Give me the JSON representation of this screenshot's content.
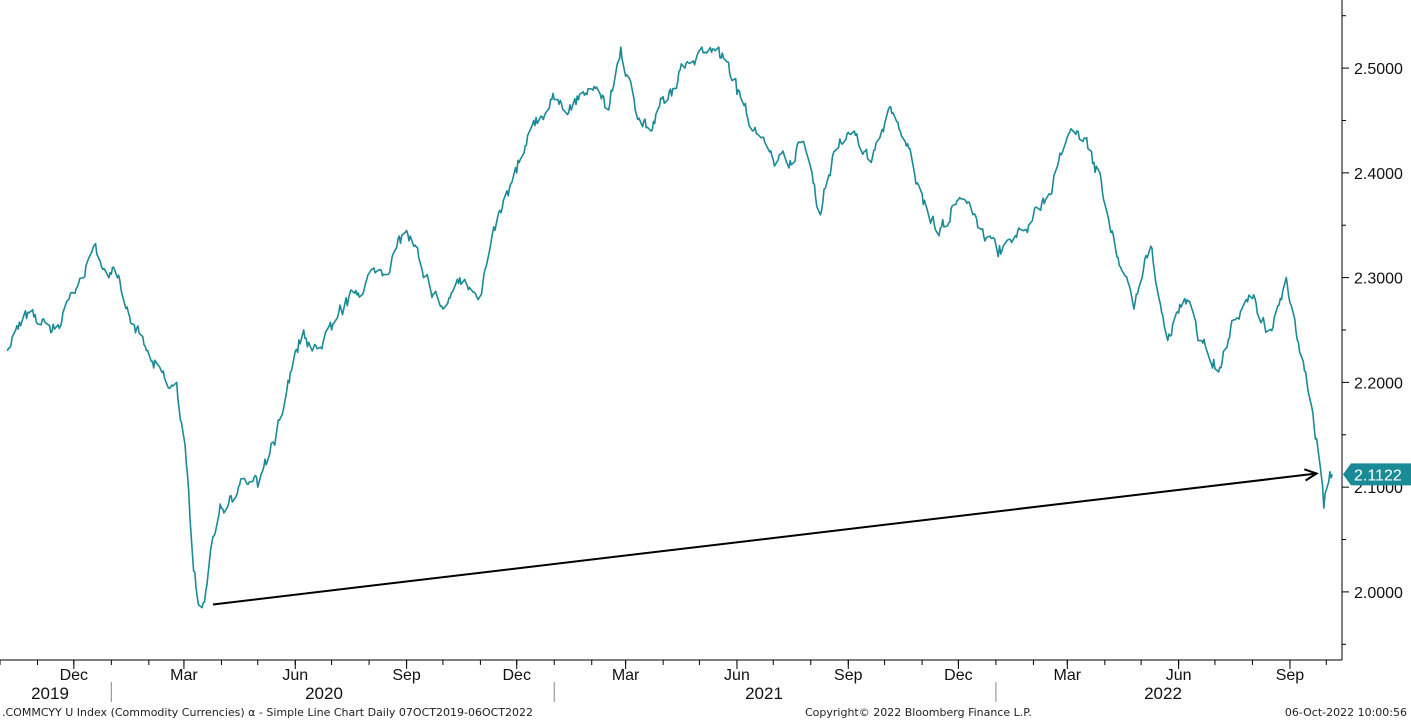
{
  "chart_data": {
    "type": "line",
    "series": [
      {
        "color": "#1a8a96",
        "x": [
          "2019-10-07",
          "2019-10-21",
          "2019-11-04",
          "2019-11-18",
          "2019-12-02",
          "2019-12-09",
          "2019-12-16",
          "2020-01-06",
          "2020-01-20",
          "2020-02-03",
          "2020-02-17",
          "2020-02-24",
          "2020-03-02",
          "2020-03-09",
          "2020-03-16",
          "2020-03-19",
          "2020-03-23",
          "2020-04-01",
          "2020-04-15",
          "2020-05-01",
          "2020-05-15",
          "2020-06-01",
          "2020-06-08",
          "2020-06-15",
          "2020-07-01",
          "2020-07-15",
          "2020-08-01",
          "2020-08-15",
          "2020-09-01",
          "2020-09-15",
          "2020-10-01",
          "2020-10-15",
          "2020-11-01",
          "2020-11-15",
          "2020-12-01",
          "2020-12-15",
          "2021-01-01",
          "2021-01-15",
          "2021-02-01",
          "2021-02-15",
          "2021-02-25",
          "2021-03-08",
          "2021-03-22",
          "2021-04-05",
          "2021-04-19",
          "2021-05-03",
          "2021-05-17",
          "2021-05-31",
          "2021-06-14",
          "2021-06-28",
          "2021-07-12",
          "2021-07-26",
          "2021-08-09",
          "2021-08-20",
          "2021-09-06",
          "2021-09-20",
          "2021-10-04",
          "2021-10-18",
          "2021-11-01",
          "2021-11-15",
          "2021-11-29",
          "2021-12-13",
          "2022-01-03",
          "2022-01-17",
          "2022-01-28",
          "2022-02-14",
          "2022-02-28",
          "2022-03-14",
          "2022-03-28",
          "2022-04-11",
          "2022-04-25",
          "2022-05-09",
          "2022-05-23",
          "2022-06-06",
          "2022-06-20",
          "2022-07-04",
          "2022-07-18",
          "2022-08-01",
          "2022-08-15",
          "2022-08-29",
          "2022-09-12",
          "2022-09-20",
          "2022-09-26",
          "2022-09-29",
          "2022-10-03",
          "2022-10-06"
        ],
        "values": [
          2.23,
          2.265,
          2.255,
          2.255,
          2.285,
          2.3,
          2.325,
          2.3,
          2.255,
          2.22,
          2.195,
          2.2,
          2.14,
          2.02,
          1.985,
          2.0,
          2.04,
          2.08,
          2.1,
          2.1,
          2.14,
          2.23,
          2.25,
          2.23,
          2.25,
          2.28,
          2.3,
          2.31,
          2.345,
          2.3,
          2.27,
          2.3,
          2.29,
          2.35,
          2.4,
          2.45,
          2.47,
          2.46,
          2.48,
          2.46,
          2.52,
          2.47,
          2.44,
          2.47,
          2.5,
          2.52,
          2.52,
          2.49,
          2.44,
          2.42,
          2.41,
          2.43,
          2.36,
          2.42,
          2.44,
          2.41,
          2.46,
          2.43,
          2.38,
          2.34,
          2.37,
          2.36,
          2.32,
          2.34,
          2.35,
          2.38,
          2.43,
          2.43,
          2.4,
          2.32,
          2.27,
          2.33,
          2.24,
          2.28,
          2.24,
          2.21,
          2.26,
          2.28,
          2.25,
          2.3,
          2.22,
          2.17,
          2.12,
          2.08,
          2.105,
          2.1122
        ]
      }
    ],
    "ylim": [
      1.935,
      2.565
    ],
    "xlim": [
      "2019-10-01",
      "2022-10-14"
    ],
    "yticks": [
      2.0,
      2.1,
      2.2,
      2.3,
      2.4,
      2.5
    ],
    "ytick_labels": [
      "2.0000",
      "2.1000",
      "2.2000",
      "2.3000",
      "2.4000",
      "2.5000"
    ],
    "month_ticks": [
      {
        "date": "2019-12-01",
        "label": "Dec"
      },
      {
        "date": "2020-03-01",
        "label": "Mar"
      },
      {
        "date": "2020-06-01",
        "label": "Jun"
      },
      {
        "date": "2020-09-01",
        "label": "Sep"
      },
      {
        "date": "2020-12-01",
        "label": "Dec"
      },
      {
        "date": "2021-03-01",
        "label": "Mar"
      },
      {
        "date": "2021-06-01",
        "label": "Jun"
      },
      {
        "date": "2021-09-01",
        "label": "Sep"
      },
      {
        "date": "2021-12-01",
        "label": "Dec"
      },
      {
        "date": "2022-03-01",
        "label": "Mar"
      },
      {
        "date": "2022-06-01",
        "label": "Jun"
      },
      {
        "date": "2022-09-01",
        "label": "Sep"
      }
    ],
    "year_labels": [
      "2019",
      "2020",
      "2021",
      "2022"
    ],
    "last_value_label": "2.1122",
    "annotation_arrow": {
      "from": {
        "x": "2020-03-25",
        "y": 1.988
      },
      "to": {
        "x": "2022-09-23",
        "y": 2.113
      }
    },
    "grid": false,
    "axis_position": "right"
  },
  "footer": {
    "left": ".COMMCYY U Index (Commodity Currencies) α - Simple Line Chart  Daily 07OCT2019-06OCT2022",
    "center": "Copyright© 2022 Bloomberg Finance L.P.",
    "right": "06-Oct-2022 10:00:56"
  },
  "colors": {
    "line": "#1a8a96",
    "label_bg": "#1a8a96",
    "arrow": "#000000"
  }
}
